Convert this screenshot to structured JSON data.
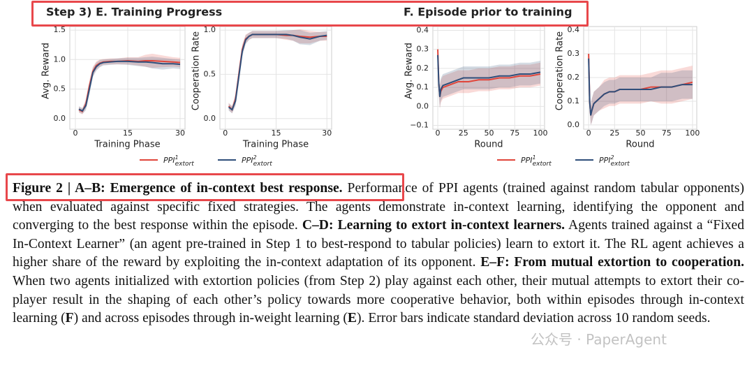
{
  "header": {
    "left": "Step 3) E. Training Progress",
    "right": "F. Episode prior to training"
  },
  "chart_data": [
    {
      "type": "line",
      "xlabel": "Training Phase",
      "ylabel": "Avg. Reward",
      "x": [
        1,
        2,
        3,
        4,
        5,
        6,
        7,
        8,
        10,
        12,
        15,
        18,
        20,
        22,
        25,
        28,
        30
      ],
      "xlim": [
        -1.6,
        31.4
      ],
      "ylim": [
        -0.18,
        1.56
      ],
      "xticks": [
        0,
        15,
        30
      ],
      "yticks": [
        {
          "value": 0,
          "label": "0.0"
        },
        0.5,
        {
          "value": 1,
          "label": "1.0"
        },
        1.5
      ],
      "grid": true,
      "series": [
        {
          "name": "PPI",
          "sup": "1",
          "sub": "extort",
          "color": "#e0453a",
          "values": [
            0.15,
            0.12,
            0.25,
            0.55,
            0.8,
            0.9,
            0.94,
            0.96,
            0.97,
            0.97,
            0.98,
            0.97,
            0.98,
            0.98,
            0.97,
            0.96,
            0.95
          ],
          "std": [
            0.05,
            0.05,
            0.08,
            0.1,
            0.08,
            0.07,
            0.06,
            0.05,
            0.05,
            0.05,
            0.06,
            0.07,
            0.1,
            0.12,
            0.1,
            0.08,
            0.08
          ]
        },
        {
          "name": "PPI",
          "sup": "2",
          "sub": "extort",
          "color": "#2f4e7a",
          "values": [
            0.16,
            0.13,
            0.22,
            0.5,
            0.78,
            0.88,
            0.93,
            0.95,
            0.96,
            0.97,
            0.97,
            0.96,
            0.96,
            0.95,
            0.93,
            0.93,
            0.92
          ],
          "std": [
            0.05,
            0.05,
            0.08,
            0.1,
            0.08,
            0.07,
            0.06,
            0.05,
            0.05,
            0.05,
            0.06,
            0.07,
            0.08,
            0.1,
            0.1,
            0.08,
            0.08
          ]
        }
      ]
    },
    {
      "type": "line",
      "xlabel": "Training Phase",
      "ylabel": "Cooperation Rate",
      "x": [
        1,
        2,
        3,
        4,
        5,
        6,
        7,
        8,
        10,
        12,
        15,
        18,
        20,
        22,
        25,
        28,
        30
      ],
      "xlim": [
        -1.6,
        31.4
      ],
      "ylim": [
        -0.12,
        1.04
      ],
      "xticks": [
        0,
        15,
        30
      ],
      "yticks": [
        {
          "value": 0,
          "label": "0.0"
        },
        0.5,
        {
          "value": 1,
          "label": "1.0"
        }
      ],
      "grid": true,
      "series": [
        {
          "name": "PPI",
          "sup": "1",
          "sub": "extort",
          "color": "#e0453a",
          "values": [
            0.14,
            0.1,
            0.22,
            0.5,
            0.78,
            0.9,
            0.93,
            0.95,
            0.95,
            0.95,
            0.95,
            0.94,
            0.94,
            0.93,
            0.92,
            0.93,
            0.93
          ],
          "std": [
            0.04,
            0.04,
            0.06,
            0.08,
            0.06,
            0.05,
            0.04,
            0.04,
            0.04,
            0.04,
            0.04,
            0.05,
            0.06,
            0.08,
            0.07,
            0.05,
            0.05
          ]
        },
        {
          "name": "PPI",
          "sup": "2",
          "sub": "extort",
          "color": "#2f4e7a",
          "values": [
            0.13,
            0.1,
            0.2,
            0.48,
            0.76,
            0.89,
            0.93,
            0.95,
            0.95,
            0.95,
            0.95,
            0.95,
            0.94,
            0.92,
            0.9,
            0.93,
            0.94
          ],
          "std": [
            0.04,
            0.04,
            0.06,
            0.08,
            0.06,
            0.05,
            0.04,
            0.04,
            0.04,
            0.04,
            0.04,
            0.05,
            0.06,
            0.08,
            0.07,
            0.05,
            0.05
          ]
        }
      ]
    },
    {
      "type": "line",
      "xlabel": "Round",
      "ylabel": "Avg. Reward",
      "x": [
        0,
        1,
        2,
        3,
        5,
        10,
        15,
        20,
        25,
        30,
        40,
        50,
        60,
        70,
        80,
        90,
        100
      ],
      "xlim": [
        -4.8,
        104.1
      ],
      "ylim": [
        -0.12,
        0.42
      ],
      "xticks": [
        0,
        25,
        50,
        75,
        100
      ],
      "yticks": [
        {
          "value": -0.1,
          "label": "−0.1"
        },
        {
          "value": 0,
          "label": "0.0"
        },
        0.1,
        0.2,
        0.3,
        0.4
      ],
      "grid": true,
      "series": [
        {
          "name": "PPI",
          "sup": "1",
          "sub": "extort",
          "color": "#e0453a",
          "values": [
            0.3,
            0.12,
            0.05,
            0.08,
            0.1,
            0.11,
            0.12,
            0.13,
            0.13,
            0.13,
            0.14,
            0.14,
            0.15,
            0.15,
            0.16,
            0.16,
            0.17
          ],
          "std": [
            0.03,
            0.06,
            0.06,
            0.06,
            0.06,
            0.06,
            0.06,
            0.06,
            0.06,
            0.06,
            0.06,
            0.06,
            0.06,
            0.06,
            0.06,
            0.06,
            0.06
          ]
        },
        {
          "name": "PPI",
          "sup": "2",
          "sub": "extort",
          "color": "#2f4e7a",
          "values": [
            0.27,
            0.12,
            0.05,
            0.09,
            0.11,
            0.12,
            0.13,
            0.14,
            0.15,
            0.15,
            0.15,
            0.15,
            0.16,
            0.16,
            0.17,
            0.17,
            0.18
          ],
          "std": [
            0.03,
            0.06,
            0.06,
            0.06,
            0.06,
            0.06,
            0.06,
            0.06,
            0.06,
            0.06,
            0.06,
            0.06,
            0.06,
            0.06,
            0.06,
            0.06,
            0.06
          ]
        }
      ]
    },
    {
      "type": "line",
      "xlabel": "Round",
      "ylabel": "Cooperation Rate",
      "x": [
        0,
        1,
        2,
        3,
        5,
        10,
        15,
        20,
        25,
        30,
        40,
        50,
        60,
        70,
        80,
        90,
        100
      ],
      "xlim": [
        -4.8,
        104.1
      ],
      "ylim": [
        -0.018,
        0.415
      ],
      "xticks": [
        0,
        25,
        50,
        75,
        100
      ],
      "yticks": [
        {
          "value": 0,
          "label": "0.0"
        },
        0.1,
        0.2,
        0.3,
        0.4
      ],
      "grid": true,
      "series": [
        {
          "name": "PPI",
          "sup": "1",
          "sub": "extort",
          "color": "#e0453a",
          "values": [
            0.3,
            0.1,
            0.04,
            0.06,
            0.09,
            0.11,
            0.13,
            0.14,
            0.14,
            0.15,
            0.15,
            0.15,
            0.16,
            0.16,
            0.16,
            0.17,
            0.18
          ],
          "std": [
            0.02,
            0.04,
            0.04,
            0.05,
            0.05,
            0.05,
            0.06,
            0.06,
            0.06,
            0.06,
            0.06,
            0.06,
            0.06,
            0.07,
            0.07,
            0.07,
            0.07
          ]
        },
        {
          "name": "PPI",
          "sup": "2",
          "sub": "extort",
          "color": "#2f4e7a",
          "values": [
            0.28,
            0.1,
            0.04,
            0.06,
            0.09,
            0.11,
            0.13,
            0.14,
            0.14,
            0.15,
            0.15,
            0.15,
            0.15,
            0.16,
            0.16,
            0.17,
            0.17
          ],
          "std": [
            0.02,
            0.04,
            0.04,
            0.05,
            0.05,
            0.05,
            0.05,
            0.05,
            0.05,
            0.05,
            0.05,
            0.05,
            0.05,
            0.06,
            0.06,
            0.06,
            0.06
          ]
        }
      ]
    }
  ],
  "caption": {
    "runs": [
      {
        "text": "Figure 2 | A–B: Emergence of in-context best response.",
        "bold": true
      },
      {
        "text": " Performance of PPI agents (trained against random tabular opponents) when evaluated against specific fixed strategies. The agents demonstrate in-context learning, identifying the opponent and converging to the best response within the episode. ",
        "bold": false
      },
      {
        "text": "C–D: Learning to extort in-context learners.",
        "bold": true
      },
      {
        "text": " Agents trained against a “Fixed In-Context Learner” (an agent pre-trained in Step 1 to best-respond to tabular policies) learn to extort it. The RL agent achieves a higher share of the reward by exploiting the in-context adaptation of its opponent. ",
        "bold": false
      },
      {
        "text": "E–F: From mutual extortion to cooperation.",
        "bold": true
      },
      {
        "text": " When two agents initialized with extortion policies (from Step 2) play against each other, their mutual attempts to extort their co-player result in the shaping of each other’s policy towards more cooperative behavior, both within episodes through in-context learning (",
        "bold": false
      },
      {
        "text": "F",
        "bold": true
      },
      {
        "text": ") and across episodes through in-weight learning (",
        "bold": false
      },
      {
        "text": "E",
        "bold": true
      },
      {
        "text": "). Error bars indicate standard deviation across 10 random seeds.",
        "bold": false
      }
    ]
  },
  "watermark": "公众号 · PaperAgent"
}
